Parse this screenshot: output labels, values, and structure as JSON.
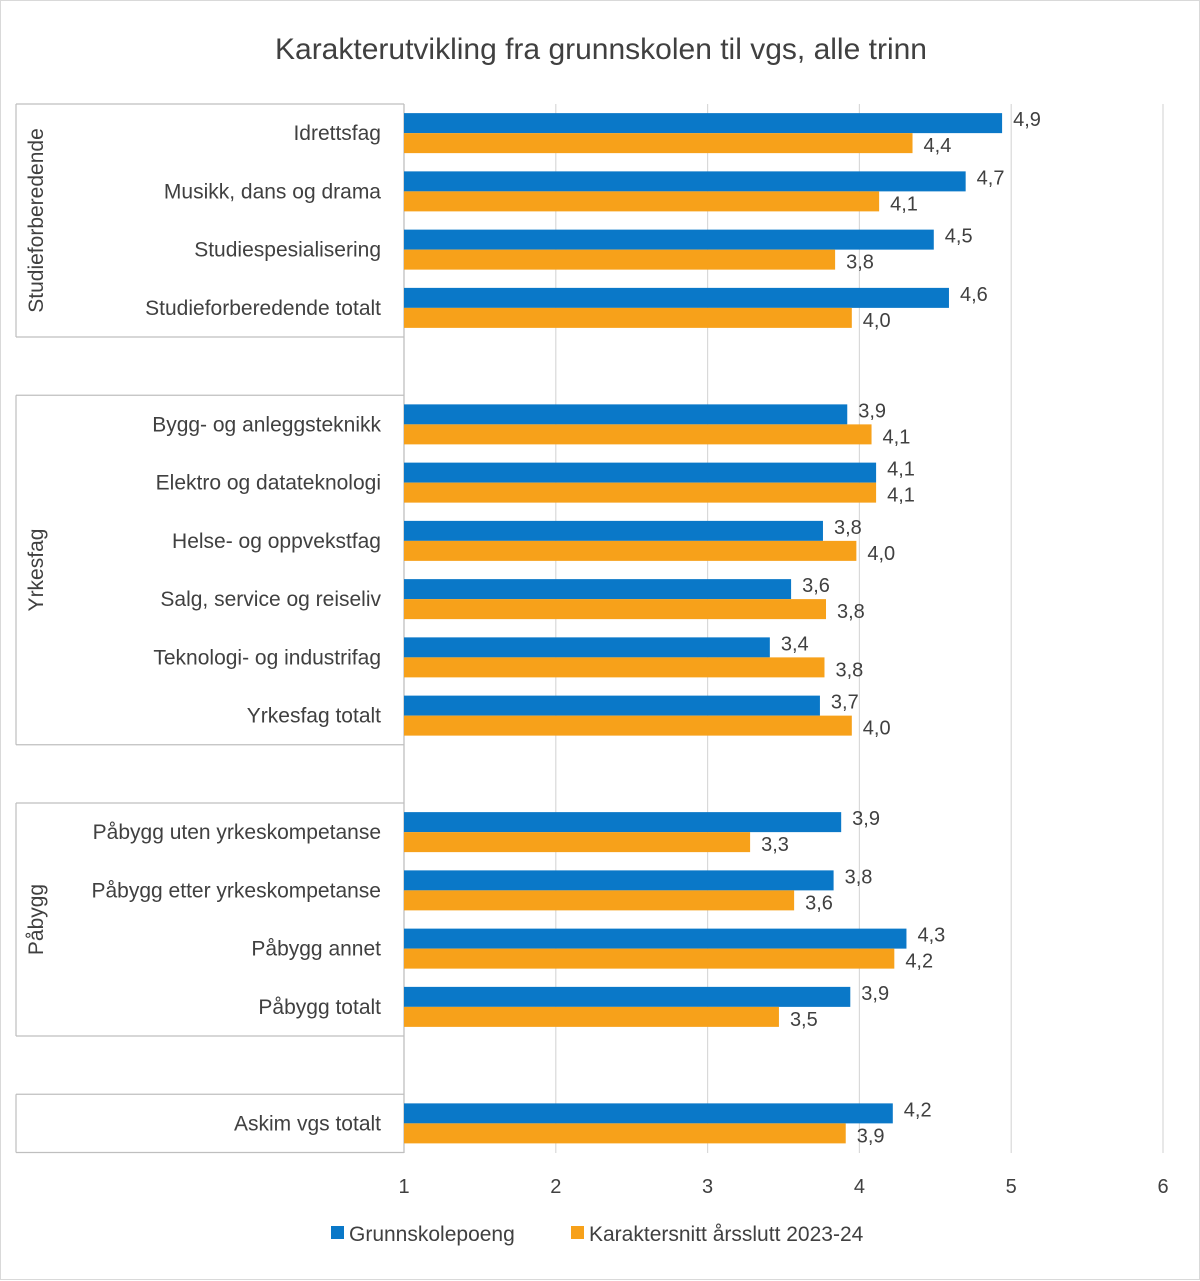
{
  "chart_data": {
    "type": "bar",
    "orientation": "horizontal",
    "title": "Karakterutvikling fra grunnskolen til vgs, alle trinn",
    "xlabel": "",
    "ylabel": "",
    "xlim": [
      1,
      6
    ],
    "x_ticks": [
      "1",
      "2",
      "3",
      "4",
      "5",
      "6"
    ],
    "grid": true,
    "legend_position": "bottom",
    "groups": [
      {
        "name": "Studieforberedende",
        "categories": [
          "Idrettsfag",
          "Musikk, dans og drama",
          "Studiespesialisering",
          "Studieforberedende totalt"
        ]
      },
      {
        "name": "Yrkesfag",
        "categories": [
          "Bygg- og anleggsteknikk",
          "Elektro og datateknologi",
          "Helse- og oppvekstfag",
          "Salg, service og reiseliv",
          "Teknologi- og industrifag",
          "Yrkesfag totalt"
        ]
      },
      {
        "name": "Påbygg",
        "categories": [
          "Påbygg uten yrkeskompetanse",
          "Påbygg etter yrkeskompetanse",
          "Påbygg annet",
          "Påbygg totalt"
        ]
      },
      {
        "name": "",
        "categories": [
          "Askim vgs totalt"
        ]
      }
    ],
    "series": [
      {
        "name": "Grunnskolepoeng",
        "color": "#0a78c8",
        "values": [
          4.94,
          4.7,
          4.49,
          4.59,
          3.92,
          4.11,
          3.76,
          3.55,
          3.41,
          3.74,
          3.88,
          3.83,
          4.31,
          3.94,
          4.22
        ],
        "labels": [
          "4,9",
          "4,7",
          "4,5",
          "4,6",
          "3,9",
          "4,1",
          "3,8",
          "3,6",
          "3,4",
          "3,7",
          "3,9",
          "3,8",
          "4,3",
          "3,9",
          "4,2"
        ]
      },
      {
        "name": "Karaktersnitt årsslutt 2023-24",
        "color": "#f7a11a",
        "values": [
          4.35,
          4.13,
          3.84,
          3.95,
          4.08,
          4.11,
          3.98,
          3.78,
          3.77,
          3.95,
          3.28,
          3.57,
          4.23,
          3.47,
          3.91
        ],
        "labels": [
          "4,4",
          "4,1",
          "3,8",
          "4,0",
          "4,1",
          "4,1",
          "4,0",
          "3,8",
          "3,8",
          "4,0",
          "3,3",
          "3,6",
          "4,2",
          "3,5",
          "3,9"
        ]
      }
    ]
  }
}
